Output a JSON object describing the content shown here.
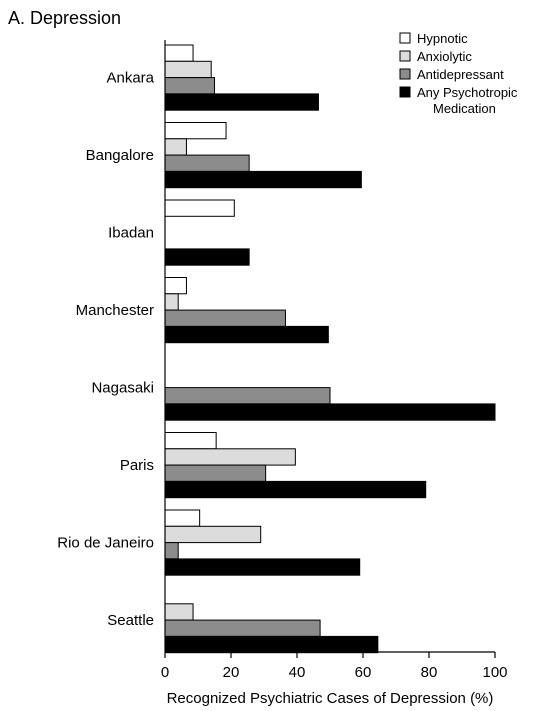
{
  "chart_data": {
    "type": "bar",
    "orientation": "horizontal",
    "title": "A. Depression",
    "xlabel": "Recognized Psychiatric Cases of Depression (%)",
    "ylabel": "",
    "xlim": [
      0,
      100
    ],
    "xticks": [
      0,
      20,
      40,
      60,
      80,
      100
    ],
    "grid": false,
    "legend_position": "top-right",
    "categories": [
      "Ankara",
      "Bangalore",
      "Ibadan",
      "Manchester",
      "Nagasaki",
      "Paris",
      "Rio de Janeiro",
      "Seattle"
    ],
    "series": [
      {
        "name": "Hypnotic",
        "color": "#ffffff",
        "values": [
          8.5,
          18.5,
          21,
          6.5,
          0,
          15.5,
          10.5,
          0
        ]
      },
      {
        "name": "Anxiolytic",
        "color": "#dcdcdc",
        "values": [
          14,
          6.5,
          0,
          4,
          0,
          39.5,
          29,
          8.5
        ]
      },
      {
        "name": "Antidepressant",
        "color": "#8c8c8c",
        "values": [
          15,
          25.5,
          0,
          36.5,
          50,
          30.5,
          4,
          47
        ]
      },
      {
        "name": "Any Psychotropic\nMedication",
        "color": "#000000",
        "values": [
          46.5,
          59.5,
          25.5,
          49.5,
          100,
          79,
          59,
          64.5
        ]
      }
    ]
  }
}
